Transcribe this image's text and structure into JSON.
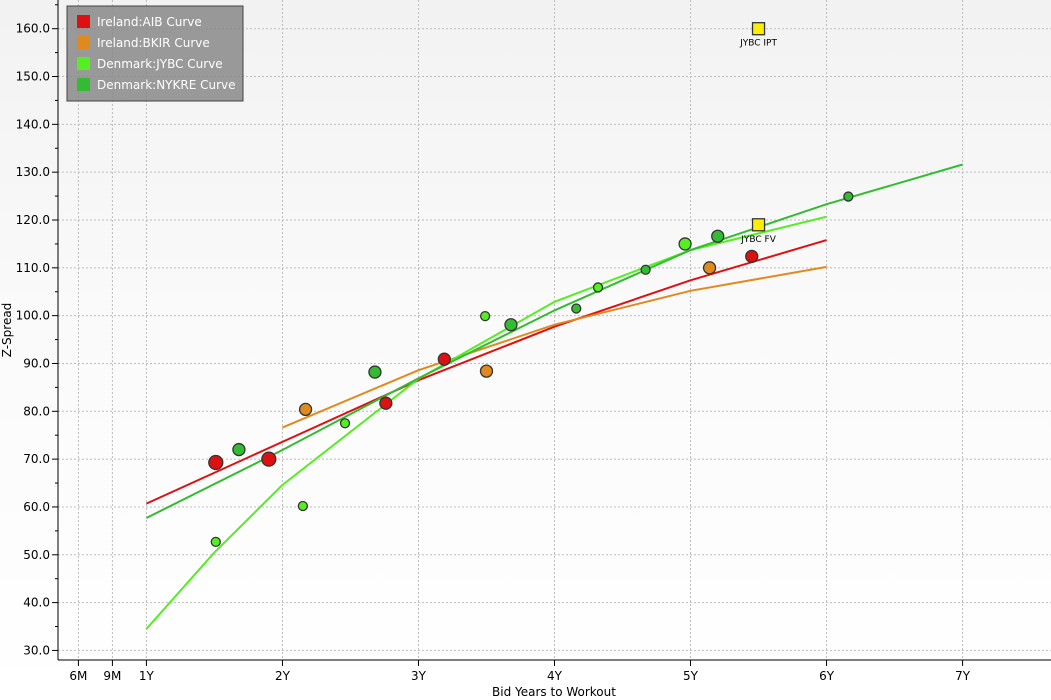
{
  "chart_data": {
    "type": "scatter",
    "xlabel": "Bid Years to Workout",
    "ylabel": "Z-Spread",
    "xlim": [
      0.35,
      7.65
    ],
    "ylim": [
      28,
      166
    ],
    "x_ticks": [
      {
        "value": 0.5,
        "label": "6M"
      },
      {
        "value": 0.75,
        "label": "9M"
      },
      {
        "value": 1,
        "label": "1Y"
      },
      {
        "value": 2,
        "label": "2Y"
      },
      {
        "value": 3,
        "label": "3Y"
      },
      {
        "value": 4,
        "label": "4Y"
      },
      {
        "value": 5,
        "label": "5Y"
      },
      {
        "value": 6,
        "label": "6Y"
      },
      {
        "value": 7,
        "label": "7Y"
      }
    ],
    "y_ticks": [
      {
        "value": 30,
        "label": "30.0"
      },
      {
        "value": 40,
        "label": "40.0"
      },
      {
        "value": 50,
        "label": "50.0"
      },
      {
        "value": 60,
        "label": "60.0"
      },
      {
        "value": 70,
        "label": "70.0"
      },
      {
        "value": 80,
        "label": "80.0"
      },
      {
        "value": 90,
        "label": "90.0"
      },
      {
        "value": 100,
        "label": "100.0"
      },
      {
        "value": 110,
        "label": "110.0"
      },
      {
        "value": 120,
        "label": "120.0"
      },
      {
        "value": 130,
        "label": "130.0"
      },
      {
        "value": 140,
        "label": "140.0"
      },
      {
        "value": 150,
        "label": "150.0"
      },
      {
        "value": 160,
        "label": "160.0"
      }
    ],
    "grid": true,
    "legend_position": "top-left",
    "series": [
      {
        "name": "Ireland:AIB Curve",
        "color": "#dd1111",
        "curve": [
          [
            1,
            60.7
          ],
          [
            2,
            73.6
          ],
          [
            3,
            86.5
          ],
          [
            4,
            97.7
          ],
          [
            5,
            107.4
          ],
          [
            6,
            115.8
          ]
        ],
        "points": [
          {
            "x": 1.51,
            "y": 69.3,
            "size": "large"
          },
          {
            "x": 1.9,
            "y": 70.0,
            "size": "large"
          },
          {
            "x": 2.76,
            "y": 81.7,
            "size": "medium"
          },
          {
            "x": 3.19,
            "y": 90.9,
            "size": "medium"
          },
          {
            "x": 5.45,
            "y": 112.4,
            "size": "medium"
          }
        ]
      },
      {
        "name": "Ireland:BKIR Curve",
        "color": "#e08a1e",
        "curve": [
          [
            2,
            76.6
          ],
          [
            3,
            88.6
          ],
          [
            4,
            98.1
          ],
          [
            5,
            105.2
          ],
          [
            6,
            110.2
          ]
        ],
        "points": [
          {
            "x": 2.17,
            "y": 80.4,
            "size": "medium"
          },
          {
            "x": 3.5,
            "y": 88.4,
            "size": "medium"
          },
          {
            "x": 5.14,
            "y": 110.0,
            "size": "medium"
          }
        ]
      },
      {
        "name": "Denmark:JYBC Curve",
        "color": "#55ee22",
        "curve": [
          [
            1,
            34.5
          ],
          [
            1.5,
            50.5
          ],
          [
            2,
            64.6
          ],
          [
            3,
            86.8
          ],
          [
            4,
            102.9
          ],
          [
            5,
            113.7
          ],
          [
            6,
            120.7
          ]
        ],
        "points": [
          {
            "x": 1.51,
            "y": 52.7,
            "size": "small"
          },
          {
            "x": 2.15,
            "y": 60.2,
            "size": "small"
          },
          {
            "x": 2.46,
            "y": 77.5,
            "size": "small"
          },
          {
            "x": 3.49,
            "y": 99.9,
            "size": "small"
          },
          {
            "x": 4.32,
            "y": 105.9,
            "size": "small"
          },
          {
            "x": 4.96,
            "y": 115.0,
            "size": "medium"
          }
        ]
      },
      {
        "name": "Denmark:NYKRE Curve",
        "color": "#33bb33",
        "curve": [
          [
            1,
            57.7
          ],
          [
            2,
            71.9
          ],
          [
            3,
            86.9
          ],
          [
            4,
            101.1
          ],
          [
            5,
            113.7
          ],
          [
            6,
            123.3
          ],
          [
            7,
            131.6
          ]
        ],
        "points": [
          {
            "x": 1.68,
            "y": 72.0,
            "size": "medium"
          },
          {
            "x": 2.68,
            "y": 88.2,
            "size": "medium"
          },
          {
            "x": 3.68,
            "y": 98.1,
            "size": "medium"
          },
          {
            "x": 4.16,
            "y": 101.5,
            "size": "small"
          },
          {
            "x": 4.67,
            "y": 109.6,
            "size": "small"
          },
          {
            "x": 5.2,
            "y": 116.6,
            "size": "medium"
          },
          {
            "x": 6.16,
            "y": 124.9,
            "size": "small"
          }
        ]
      }
    ],
    "annotations": [
      {
        "label": "JYBC IPT",
        "x": 5.5,
        "y": 160.0,
        "marker": "square",
        "color": "#ffee00"
      },
      {
        "label": "JYBC FV",
        "x": 5.5,
        "y": 119.0,
        "marker": "square",
        "color": "#ffee00"
      }
    ]
  }
}
